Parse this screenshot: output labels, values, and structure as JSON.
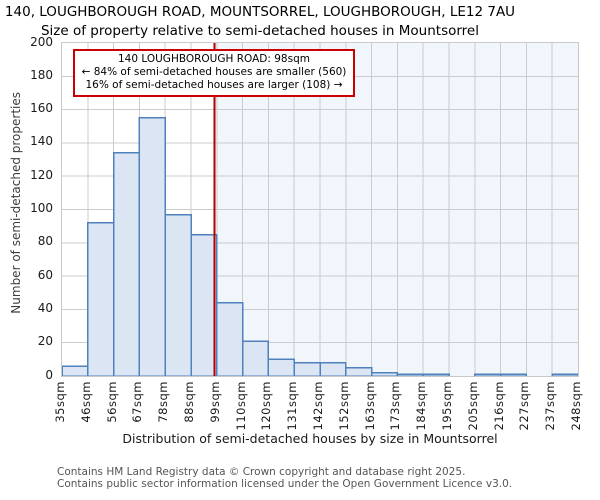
{
  "chart_data": {
    "type": "bar",
    "title": "140, LOUGHBOROUGH ROAD, MOUNTSORREL, LOUGHBOROUGH, LE12 7AU",
    "subtitle": "Size of property relative to semi-detached houses in Mountsorrel",
    "xlabel": "Distribution of semi-detached houses by size in Mountsorrel",
    "ylabel": "Number of semi-detached properties",
    "bin_labels": [
      "35sqm",
      "46sqm",
      "56sqm",
      "67sqm",
      "78sqm",
      "88sqm",
      "99sqm",
      "110sqm",
      "120sqm",
      "131sqm",
      "142sqm",
      "152sqm",
      "163sqm",
      "173sqm",
      "184sqm",
      "195sqm",
      "205sqm",
      "216sqm",
      "227sqm",
      "237sqm",
      "248sqm"
    ],
    "bin_edges_sqm": [
      35,
      46,
      56,
      67,
      78,
      88,
      99,
      110,
      120,
      131,
      142,
      152,
      163,
      173,
      184,
      195,
      205,
      216,
      227,
      237,
      248
    ],
    "values": [
      6,
      92,
      134,
      155,
      97,
      85,
      44,
      21,
      10,
      8,
      8,
      5,
      2,
      1,
      1,
      0,
      1,
      1,
      0,
      1
    ],
    "ylim": [
      0,
      200
    ],
    "yticks": [
      0,
      20,
      40,
      60,
      80,
      100,
      120,
      140,
      160,
      180,
      200
    ],
    "grid": true,
    "property_line": {
      "sqm": 98,
      "color": "#b00000"
    },
    "annotation": {
      "line1": "140 LOUGHBOROUGH ROAD: 98sqm",
      "line2": "← 84% of semi-detached houses are smaller (560)",
      "line3": "16% of semi-detached houses are larger (108) →",
      "border_color": "#cc0000"
    },
    "colors": {
      "bar_fill": "#dbe5f3",
      "bar_edge": "#4f81bd",
      "grid": "#cccccc",
      "larger_region_shade": "#f1f5fc"
    }
  },
  "footer": {
    "line1": "Contains HM Land Registry data © Crown copyright and database right 2025.",
    "line2": "Contains public sector information licensed under the Open Government Licence v3.0."
  }
}
